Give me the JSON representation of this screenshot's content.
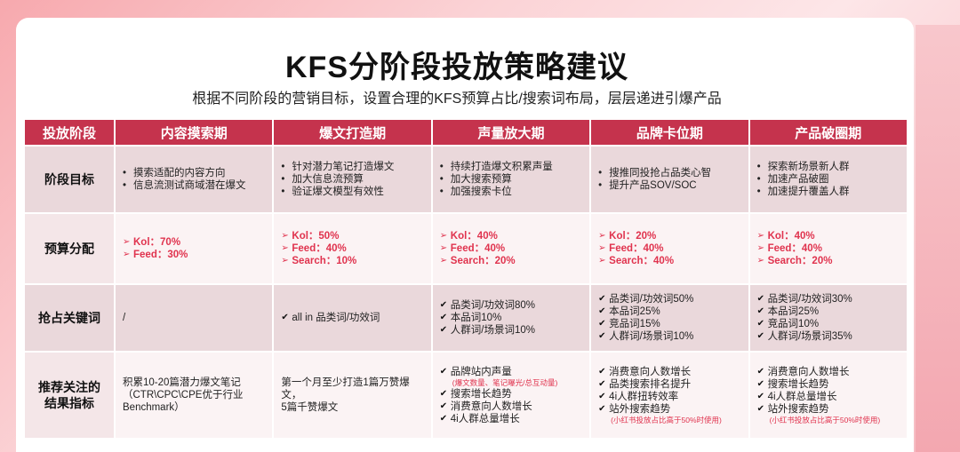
{
  "title": "KFS分阶段投放策略建议",
  "subtitle": "根据不同阶段的营销目标，设置合理的KFS预算占比/搜索词布局，层层递进引爆产品",
  "colors": {
    "header": "#c5334d",
    "accent": "#e0334e"
  },
  "table": {
    "corner": "投放阶段",
    "columns": [
      "内容摸索期",
      "爆文打造期",
      "声量放大期",
      "品牌卡位期",
      "产品破圈期"
    ],
    "rows": {
      "goal": {
        "label": "阶段目标",
        "cells": [
          [
            "摸索适配的内容方向",
            "信息流测试商域潜在爆文"
          ],
          [
            "针对潜力笔记打造爆文",
            "加大信息流预算",
            "验证爆文模型有效性"
          ],
          [
            "持续打造爆文积累声量",
            "加大搜索预算",
            "加强搜索卡位"
          ],
          [
            "搜推同投抢占品类心智",
            "提升产品SOV/SOC"
          ],
          [
            "探索新场景新人群",
            "加速产品破圈",
            "加速提升覆盖人群"
          ]
        ]
      },
      "budget": {
        "label": "预算分配",
        "cells": [
          [
            "Kol：70%",
            "Feed：30%"
          ],
          [
            "Kol：50%",
            "Feed：40%",
            "Search：10%"
          ],
          [
            "Kol：40%",
            "Feed：40%",
            "Search：20%"
          ],
          [
            "Kol：20%",
            "Feed：40%",
            "Search：40%"
          ],
          [
            "Kol：40%",
            "Feed：40%",
            "Search：20%"
          ]
        ]
      },
      "keywords": {
        "label": "抢占关键词",
        "first": "/",
        "cells": [
          [
            "all in 品类词/功效词"
          ],
          [
            "品类词/功效词80%",
            "本品词10%",
            "人群词/场景词10%"
          ],
          [
            "品类词/功效词50%",
            "本品词25%",
            "竞品词15%",
            "人群词/场景词10%"
          ],
          [
            "品类词/功效词30%",
            "本品词25%",
            "竞品词10%",
            "人群词/场景词35%"
          ]
        ]
      },
      "metrics": {
        "label_1": "推荐关注的",
        "label_2": "结果指标",
        "c1_1": "积累10-20篇潜力爆文笔记",
        "c1_2": "（CTR\\CPC\\CPE优于行业",
        "c1_3": "Benchmark）",
        "c2_1": "第一个月至少打造1篇万赞爆文，",
        "c2_2": "5篇千赞爆文",
        "c3_first": "品牌站内声量",
        "c3_note": "(爆文数量、笔记曝光/总互动量)",
        "c3_rest": [
          "搜索增长趋势",
          "消费意向人数增长",
          "4i人群总量增长"
        ],
        "c4": [
          "消费意向人数增长",
          "品类搜索排名提升",
          "4i人群扭转效率",
          "站外搜索趋势"
        ],
        "c4_note": "(小红书投放占比高于50%时使用)",
        "c5": [
          "消费意向人数增长",
          "搜索增长趋势",
          "4i人群总量增长",
          "站外搜索趋势"
        ],
        "c5_note": "(小红书投放占比高于50%时使用)"
      }
    }
  }
}
